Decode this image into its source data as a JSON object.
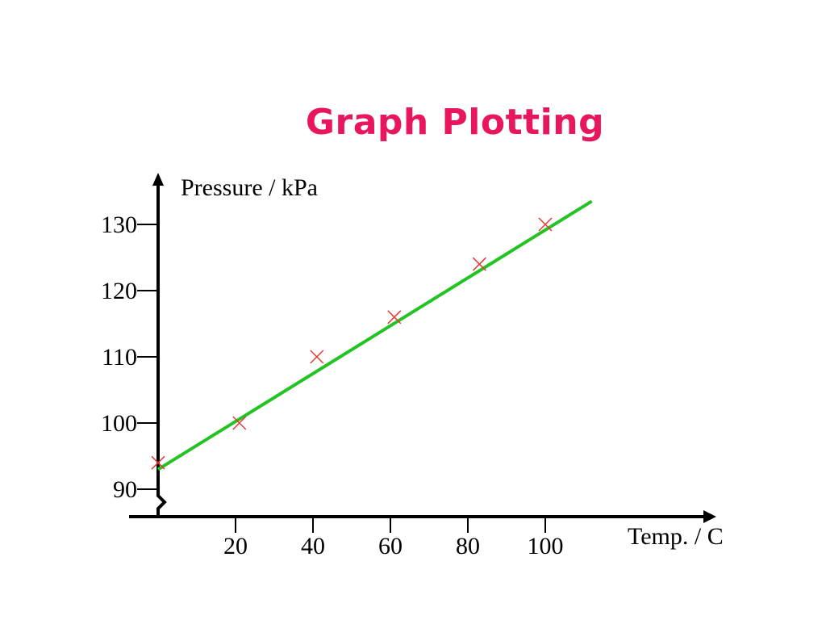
{
  "page": {
    "title": "Graph Plotting",
    "title_color": "#e8155f"
  },
  "chart_data": {
    "type": "scatter",
    "title": "Graph Plotting",
    "xlabel": "Temp. / C",
    "ylabel": "Pressure / kPa",
    "x_ticks": [
      20,
      40,
      60,
      80,
      100
    ],
    "x_tick_labels": [
      "20",
      "40",
      "60",
      "80",
      "100"
    ],
    "y_ticks": [
      90,
      100,
      110,
      120,
      130
    ],
    "y_tick_labels": [
      "90",
      "100",
      "110",
      "120",
      "130"
    ],
    "y_axis_break": true,
    "grid": false,
    "points": [
      {
        "x": 0,
        "y": 94
      },
      {
        "x": 21,
        "y": 100
      },
      {
        "x": 41,
        "y": 110
      },
      {
        "x": 61,
        "y": 116
      },
      {
        "x": 83,
        "y": 124
      },
      {
        "x": 100,
        "y": 130
      }
    ],
    "best_fit_line": {
      "x": [
        0,
        112
      ],
      "y": [
        93,
        133.5
      ]
    },
    "colors": {
      "axes": "#000000",
      "markers": "#e53935",
      "fit_line": "#22c322"
    }
  }
}
